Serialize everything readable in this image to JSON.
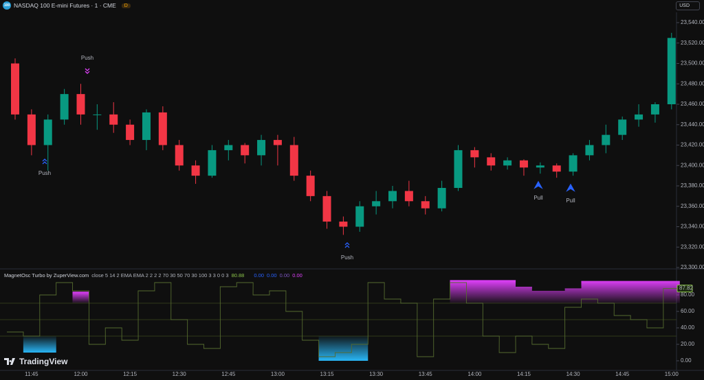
{
  "header": {
    "badge": "100",
    "symbol": "NASDAQ 100 E-mini Futures · 1 · CME",
    "status": "D",
    "currency": "USD"
  },
  "chart_data": [
    {
      "type": "candlestick",
      "ylim": [
        23292,
        23545
      ],
      "yticks": [
        {
          "value": 23300,
          "label": "23,300.00"
        },
        {
          "value": 23320,
          "label": "23,320.00"
        },
        {
          "value": 23340,
          "label": "23,340.00"
        },
        {
          "value": 23360,
          "label": "23,360.00"
        },
        {
          "value": 23380,
          "label": "23,380.00"
        },
        {
          "value": 23400,
          "label": "23,400.00"
        },
        {
          "value": 23420,
          "label": "23,420.00"
        },
        {
          "value": 23440,
          "label": "23,440.00"
        },
        {
          "value": 23460,
          "label": "23,460.00"
        },
        {
          "value": 23480,
          "label": "23,480.00"
        },
        {
          "value": 23500,
          "label": "23,500.00"
        },
        {
          "value": 23520,
          "label": "23,520.00"
        },
        {
          "value": 23540,
          "label": "23,540.00"
        }
      ],
      "up_color": "#089981",
      "down_color": "#f23645",
      "open": [
        23500,
        23450,
        23420,
        23445,
        23470,
        23450,
        23450,
        23440,
        23425,
        23452,
        23420,
        23400,
        23390,
        23415,
        23420,
        23410,
        23425,
        23420,
        23390,
        23370,
        23345,
        23340,
        23360,
        23365,
        23375,
        23365,
        23358,
        23378,
        23415,
        23408,
        23400,
        23405,
        23398,
        23400,
        23394,
        23410,
        23420,
        23430,
        23445,
        23450,
        23460
      ],
      "high": [
        23505,
        23455,
        23450,
        23475,
        23480,
        23460,
        23462,
        23445,
        23455,
        23458,
        23425,
        23405,
        23420,
        23425,
        23422,
        23430,
        23430,
        23428,
        23395,
        23375,
        23350,
        23365,
        23375,
        23380,
        23385,
        23370,
        23385,
        23420,
        23418,
        23412,
        23408,
        23406,
        23403,
        23402,
        23412,
        23425,
        23440,
        23448,
        23460,
        23462,
        23530
      ],
      "low": [
        23445,
        23410,
        23395,
        23440,
        23440,
        23435,
        23432,
        23420,
        23415,
        23415,
        23395,
        23382,
        23388,
        23405,
        23402,
        23400,
        23400,
        23385,
        23365,
        23338,
        23332,
        23335,
        23352,
        23358,
        23360,
        23352,
        23355,
        23375,
        23398,
        23395,
        23396,
        23390,
        23392,
        23388,
        23390,
        23405,
        23412,
        23425,
        23438,
        23442,
        23455
      ],
      "close": [
        23450,
        23420,
        23445,
        23470,
        23450,
        23450,
        23440,
        23425,
        23452,
        23420,
        23400,
        23390,
        23415,
        23420,
        23410,
        23425,
        23420,
        23390,
        23370,
        23345,
        23340,
        23360,
        23365,
        23375,
        23365,
        23358,
        23378,
        23415,
        23408,
        23400,
        23405,
        23398,
        23400,
        23394,
        23410,
        23420,
        23430,
        23445,
        23450,
        23460,
        23525
      ],
      "annotations": [
        {
          "text": "Push",
          "color": "#e040fb"
        },
        {
          "text": "Push",
          "color": "#2962ff"
        },
        {
          "text": "Push",
          "color": "#2962ff"
        },
        {
          "text": "Pull",
          "color": "#2962ff"
        },
        {
          "text": "Pull",
          "color": "#2962ff"
        }
      ],
      "xticks": [
        "11:45",
        "12:00",
        "12:15",
        "12:30",
        "12:45",
        "13:00",
        "13:15",
        "13:30",
        "13:45",
        "14:00",
        "14:15",
        "14:30",
        "14:45",
        "15:00"
      ]
    },
    {
      "type": "line",
      "title": "MagnetOsc Turbo by ZuperView.com",
      "params": "close 5 14 2 EMA EMA 2 2 2 2 70 30 50 70 30 100 3 3 0 0 3",
      "readouts": [
        {
          "text": "80.88",
          "color": "#8bc34a"
        },
        {
          "text": "0.00",
          "color": "#2962ff"
        },
        {
          "text": "0.00",
          "color": "#2962ff"
        },
        {
          "text": "0.00",
          "color": "#7e57c2"
        },
        {
          "text": "0.00",
          "color": "#e040fb"
        }
      ],
      "ylim": [
        -4,
        110
      ],
      "yticks": [
        {
          "value": 0,
          "label": "0.00"
        },
        {
          "value": 20,
          "label": "20.00"
        },
        {
          "value": 40,
          "label": "40.00"
        },
        {
          "value": 60,
          "label": "60.00"
        },
        {
          "value": 80,
          "label": "80.00"
        }
      ],
      "levels": [
        30,
        50,
        70
      ],
      "last": {
        "value": 87.82,
        "label": "87.82"
      },
      "series": [
        {
          "name": "Oscillator",
          "color": "#556b2f",
          "values": [
            35,
            30,
            80,
            95,
            85,
            20,
            40,
            25,
            85,
            95,
            50,
            20,
            15,
            90,
            95,
            80,
            85,
            60,
            25,
            5,
            10,
            20,
            95,
            75,
            70,
            5,
            75,
            95,
            70,
            30,
            10,
            30,
            20,
            15,
            65,
            75,
            70,
            55,
            50,
            40,
            87.82
          ]
        },
        {
          "name": "Upper zone",
          "color": "#e040fb",
          "values": [
            null,
            null,
            null,
            null,
            84,
            null,
            null,
            null,
            null,
            null,
            null,
            null,
            null,
            null,
            null,
            null,
            null,
            null,
            null,
            null,
            null,
            null,
            null,
            null,
            null,
            null,
            null,
            98,
            98,
            98,
            98,
            90,
            85,
            85,
            88,
            97,
            97,
            97,
            97,
            97,
            97
          ]
        },
        {
          "name": "Lower zone",
          "color": "#29b6f6",
          "values": [
            null,
            10,
            10,
            null,
            null,
            null,
            null,
            null,
            null,
            null,
            null,
            null,
            null,
            null,
            null,
            null,
            null,
            null,
            null,
            0,
            0,
            0,
            null,
            null,
            null,
            null,
            null,
            null,
            null,
            null,
            null,
            null,
            null,
            null,
            null,
            null,
            null,
            null,
            null,
            null,
            null
          ]
        }
      ]
    }
  ],
  "footer": {
    "logo": "TradingView"
  }
}
